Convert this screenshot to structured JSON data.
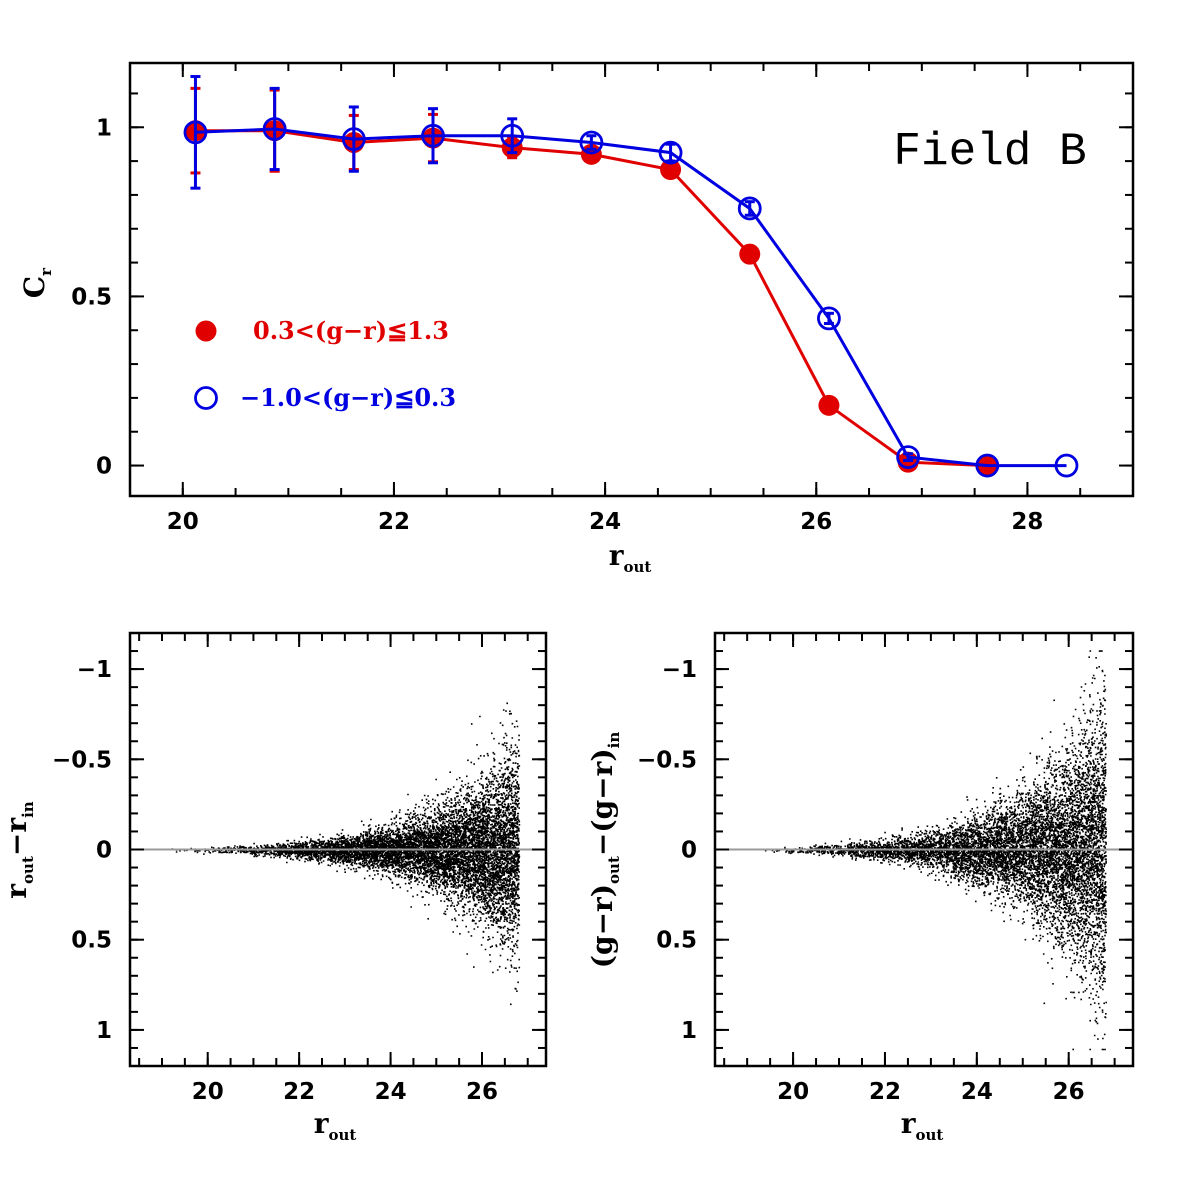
{
  "chart_data": [
    {
      "type": "line",
      "annotation": "Field B",
      "xlabel": {
        "main": "r",
        "sub": "out"
      },
      "ylabel": {
        "main": "C",
        "sub": "r"
      },
      "xlim": [
        19.5,
        29.0
      ],
      "ylim": [
        -0.09,
        1.19
      ],
      "xticks": [
        20,
        22,
        24,
        26,
        28
      ],
      "yticks": [
        0,
        0.5,
        1
      ],
      "ytick_labels": [
        "0",
        "0.5",
        "1"
      ],
      "legend_position": "middle-left",
      "series": [
        {
          "name": "0.3<(g−r)≦1.3",
          "color": "#e00000",
          "marker": "filled-circle",
          "x": [
            20.12,
            20.87,
            21.62,
            22.37,
            23.12,
            23.87,
            24.62,
            25.37,
            26.12,
            26.87,
            27.62
          ],
          "y": [
            0.99,
            0.99,
            0.955,
            0.968,
            0.94,
            0.92,
            0.875,
            0.625,
            0.178,
            0.01,
            0.0
          ],
          "err": [
            0.125,
            0.12,
            0.08,
            0.07,
            0.03,
            0.02,
            0.015,
            0.015,
            0.015,
            0.005,
            0.0
          ]
        },
        {
          "name": "−1.0<(g−r)≦0.3",
          "color": "#0000e0",
          "marker": "open-circle",
          "x": [
            20.12,
            20.87,
            21.62,
            22.37,
            23.12,
            23.87,
            24.62,
            25.37,
            26.12,
            26.87,
            27.62,
            28.37
          ],
          "y": [
            0.985,
            0.995,
            0.965,
            0.975,
            0.975,
            0.955,
            0.925,
            0.76,
            0.435,
            0.025,
            0.0,
            0.0
          ],
          "err": [
            0.165,
            0.12,
            0.095,
            0.08,
            0.05,
            0.02,
            0.025,
            0.02,
            0.015,
            0.01,
            0.0,
            0.0
          ]
        }
      ]
    },
    {
      "type": "scatter",
      "xlabel": {
        "main": "r",
        "sub": "out"
      },
      "ylabel": {
        "main": "r",
        "sub": "out",
        "main2": "−r",
        "sub2": "in"
      },
      "xlim": [
        18.3,
        27.4
      ],
      "ylim": [
        -1.2,
        1.2
      ],
      "y_inverted": true,
      "xticks": [
        20,
        22,
        24,
        26
      ],
      "yticks": [
        -1,
        -0.5,
        0,
        0.5,
        1
      ],
      "ytick_labels": [
        "−1",
        "−0.5",
        "0",
        "0.5",
        "1"
      ],
      "reference_line_y": 0,
      "color": "#000000",
      "spread_model": {
        "x_start": 19.0,
        "x_end": 26.8,
        "sigma_at_20": 0.008,
        "sigma_at_26": 0.19
      }
    },
    {
      "type": "scatter",
      "xlabel": {
        "main": "r",
        "sub": "out"
      },
      "ylabel": {
        "main": "(g−r)",
        "sub": "out",
        "main2": "−(g−r)",
        "sub2": "in"
      },
      "xlim": [
        18.3,
        27.4
      ],
      "ylim": [
        -1.2,
        1.2
      ],
      "y_inverted": true,
      "xticks": [
        20,
        22,
        24,
        26
      ],
      "yticks": [
        -1,
        -0.5,
        0,
        0.5,
        1
      ],
      "ytick_labels": [
        "−1",
        "−0.5",
        "0",
        "0.5",
        "1"
      ],
      "reference_line_y": 0,
      "color": "#000000",
      "spread_model": {
        "x_start": 19.0,
        "x_end": 26.8,
        "sigma_at_20": 0.01,
        "sigma_at_26": 0.28
      }
    }
  ]
}
